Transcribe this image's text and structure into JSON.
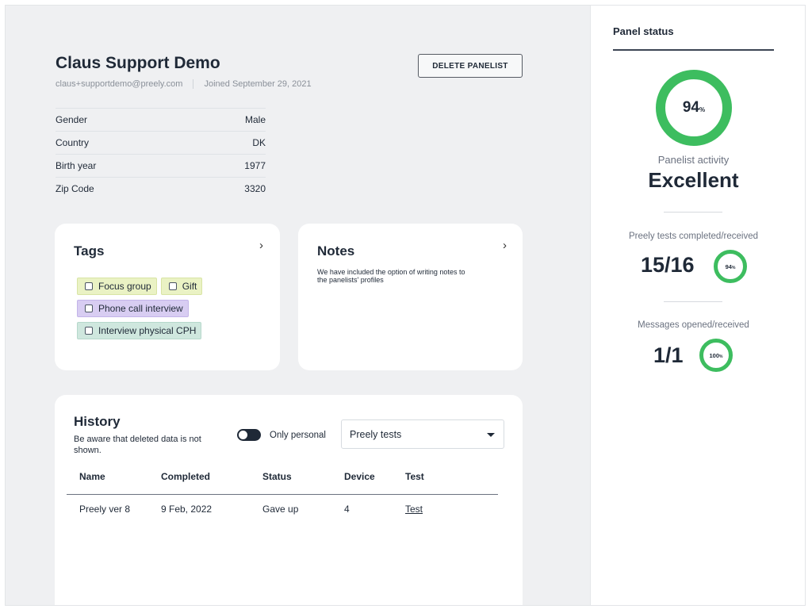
{
  "profile": {
    "name": "Claus Support Demo",
    "email": "claus+supportdemo@preely.com",
    "joined": "Joined September 29, 2021",
    "delete_label": "DELETE PANELIST",
    "fields": [
      {
        "label": "Gender",
        "value": "Male"
      },
      {
        "label": "Country",
        "value": "DK"
      },
      {
        "label": "Birth year",
        "value": "1977"
      },
      {
        "label": "Zip Code",
        "value": "3320"
      }
    ]
  },
  "tags_card": {
    "title": "Tags",
    "chevron": "›",
    "tags": [
      {
        "label": "Focus group",
        "color": "#eaf2c4"
      },
      {
        "label": "Gift",
        "color": "#eaf2c4"
      },
      {
        "label": "Phone call interview",
        "color": "#d8cdf2"
      },
      {
        "label": "Interview physical CPH",
        "color": "#cfe7de"
      }
    ]
  },
  "notes_card": {
    "title": "Notes",
    "chevron": "›",
    "text": "We have included the option of writing notes to the panelists' profiles"
  },
  "history": {
    "title": "History",
    "description": "Be aware that deleted data is not shown.",
    "toggle_label": "Only personal",
    "select_value": "Preely tests",
    "columns": [
      "Name",
      "Completed",
      "Status",
      "Device",
      "Test"
    ],
    "rows": [
      {
        "name": "Preely ver 8",
        "completed": "9 Feb, 2022",
        "status": "Gave up",
        "device": "4",
        "test": "Test"
      }
    ]
  },
  "panel_status": {
    "title": "Panel status",
    "activity_pct": "94",
    "pct_sign": "%",
    "activity_label": "Panelist activity",
    "activity_value": "Excellent",
    "tests_label": "Preely tests completed/received",
    "tests_value": "15/16",
    "tests_pct": "94",
    "messages_label": "Messages opened/received",
    "messages_value": "1/1",
    "messages_pct": "100"
  },
  "colors": {
    "accent_green": "#3dbd5f",
    "background": "#eff0f2",
    "text_dark": "#1f2937"
  }
}
